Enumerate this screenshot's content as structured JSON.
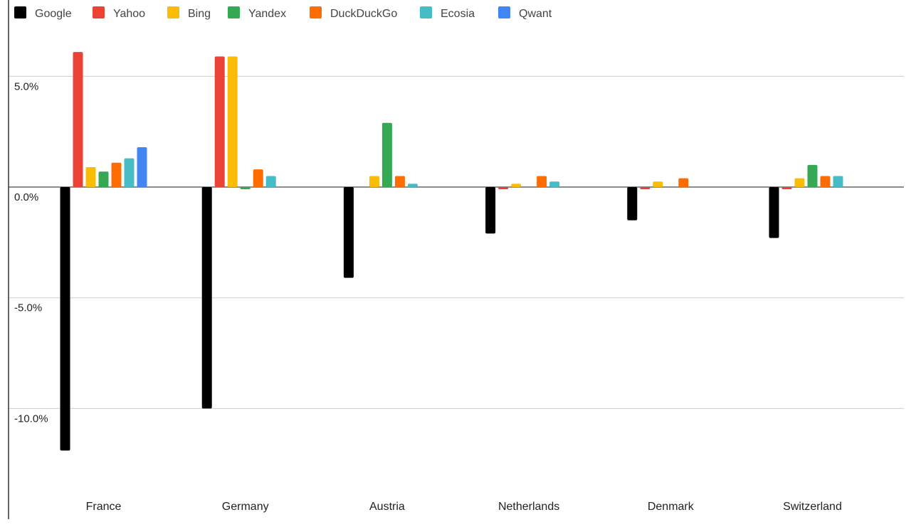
{
  "chart_data": {
    "type": "bar",
    "categories": [
      "France",
      "Germany",
      "Austria",
      "Netherlands",
      "Denmark",
      "Switzerland"
    ],
    "series": [
      {
        "name": "Google",
        "color": "#000000",
        "values": [
          -11.9,
          -10.0,
          -4.1,
          -2.1,
          -1.5,
          -2.3
        ]
      },
      {
        "name": "Yahoo",
        "color": "#ea4335",
        "values": [
          6.1,
          5.9,
          0,
          -0.1,
          -0.1,
          -0.1
        ]
      },
      {
        "name": "Bing",
        "color": "#fbbc04",
        "values": [
          0.9,
          5.9,
          0.5,
          0.15,
          0.25,
          0.4
        ]
      },
      {
        "name": "Yandex",
        "color": "#34a853",
        "values": [
          0.7,
          -0.1,
          2.9,
          0,
          0,
          1.0
        ]
      },
      {
        "name": "DuckDuckGo",
        "color": "#ff6d01",
        "values": [
          1.1,
          0.8,
          0.5,
          0.5,
          0.4,
          0.5
        ]
      },
      {
        "name": "Ecosia",
        "color": "#46bdc6",
        "values": [
          1.3,
          0.5,
          0.15,
          0.25,
          0,
          0.5
        ]
      },
      {
        "name": "Qwant",
        "color": "#4285f4",
        "values": [
          1.8,
          0,
          0,
          0,
          0,
          0
        ]
      }
    ],
    "yticks": [
      {
        "value": 5,
        "label": "5.0%"
      },
      {
        "value": 0,
        "label": "0.0%"
      },
      {
        "value": -5,
        "label": "-5.0%"
      },
      {
        "value": -10,
        "label": "-10.0%"
      }
    ],
    "ylim": [
      -15,
      8.45
    ],
    "title": "",
    "xlabel": "",
    "ylabel": "",
    "grid": true,
    "legend_position": "top-left"
  }
}
